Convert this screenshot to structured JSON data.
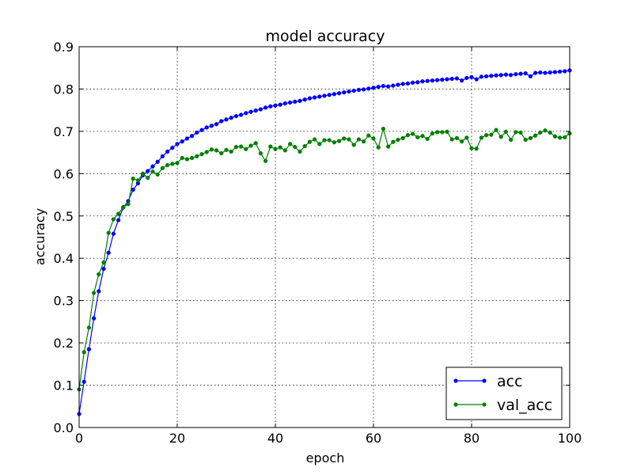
{
  "chart_data": {
    "type": "line",
    "title": "model accuracy",
    "xlabel": "epoch",
    "ylabel": "accuracy",
    "xlim": [
      0,
      100
    ],
    "ylim": [
      0.0,
      0.9
    ],
    "xticks": [
      0,
      20,
      40,
      60,
      80,
      100
    ],
    "xtick_labels": [
      "0",
      "20",
      "40",
      "60",
      "80",
      "100"
    ],
    "yticks": [
      0.0,
      0.1,
      0.2,
      0.3,
      0.4,
      0.5,
      0.6,
      0.7,
      0.8,
      0.9
    ],
    "ytick_labels": [
      "0.0",
      "0.1",
      "0.2",
      "0.3",
      "0.4",
      "0.5",
      "0.6",
      "0.7",
      "0.8",
      "0.9"
    ],
    "grid": true,
    "legend_position": "lower-right",
    "series": [
      {
        "name": "acc",
        "color": "#0000ff",
        "marker": "dot",
        "values": [
          0.032,
          0.108,
          0.185,
          0.258,
          0.322,
          0.375,
          0.413,
          0.458,
          0.49,
          0.52,
          0.535,
          0.562,
          0.577,
          0.596,
          0.606,
          0.617,
          0.628,
          0.641,
          0.652,
          0.661,
          0.67,
          0.676,
          0.683,
          0.689,
          0.697,
          0.703,
          0.709,
          0.713,
          0.717,
          0.724,
          0.728,
          0.732,
          0.736,
          0.739,
          0.743,
          0.746,
          0.749,
          0.752,
          0.756,
          0.759,
          0.761,
          0.763,
          0.766,
          0.768,
          0.77,
          0.772,
          0.775,
          0.778,
          0.78,
          0.782,
          0.784,
          0.786,
          0.788,
          0.79,
          0.792,
          0.794,
          0.796,
          0.798,
          0.799,
          0.801,
          0.803,
          0.805,
          0.807,
          0.806,
          0.808,
          0.81,
          0.812,
          0.813,
          0.815,
          0.816,
          0.818,
          0.819,
          0.82,
          0.821,
          0.822,
          0.823,
          0.824,
          0.825,
          0.82,
          0.826,
          0.828,
          0.823,
          0.829,
          0.83,
          0.831,
          0.832,
          0.833,
          0.834,
          0.833,
          0.835,
          0.836,
          0.837,
          0.83,
          0.838,
          0.839,
          0.838,
          0.839,
          0.84,
          0.841,
          0.842,
          0.844
        ]
      },
      {
        "name": "val_acc",
        "color": "#008000",
        "marker": "dot",
        "values": [
          0.09,
          0.178,
          0.236,
          0.318,
          0.362,
          0.39,
          0.46,
          0.492,
          0.505,
          0.521,
          0.528,
          0.588,
          0.584,
          0.6,
          0.59,
          0.605,
          0.598,
          0.613,
          0.62,
          0.623,
          0.625,
          0.637,
          0.634,
          0.637,
          0.641,
          0.646,
          0.651,
          0.657,
          0.655,
          0.648,
          0.656,
          0.652,
          0.663,
          0.664,
          0.658,
          0.666,
          0.672,
          0.648,
          0.63,
          0.664,
          0.658,
          0.662,
          0.655,
          0.67,
          0.663,
          0.652,
          0.665,
          0.675,
          0.681,
          0.67,
          0.679,
          0.679,
          0.674,
          0.677,
          0.683,
          0.681,
          0.668,
          0.681,
          0.676,
          0.69,
          0.683,
          0.662,
          0.706,
          0.664,
          0.675,
          0.68,
          0.684,
          0.691,
          0.694,
          0.686,
          0.689,
          0.682,
          0.695,
          0.698,
          0.698,
          0.699,
          0.681,
          0.684,
          0.676,
          0.685,
          0.66,
          0.659,
          0.685,
          0.691,
          0.692,
          0.703,
          0.687,
          0.699,
          0.68,
          0.698,
          0.697,
          0.68,
          0.684,
          0.69,
          0.697,
          0.702,
          0.697,
          0.688,
          0.685,
          0.686,
          0.695
        ]
      }
    ]
  }
}
